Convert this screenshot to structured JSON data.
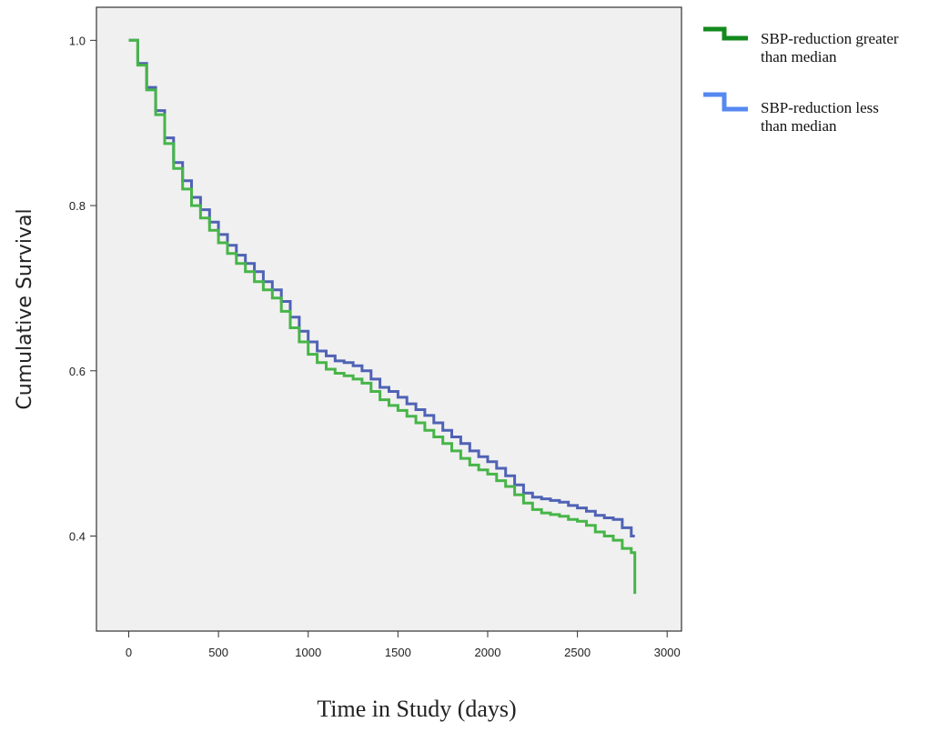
{
  "chart_data": {
    "type": "line",
    "subtype": "kaplan-meier-step",
    "xlabel": "Time in Study (days)",
    "ylabel": "Cumulative Survival",
    "xlim": [
      -180,
      3080
    ],
    "ylim": [
      0.285,
      1.04
    ],
    "xticks": [
      0,
      500,
      1000,
      1500,
      2000,
      2500,
      3000
    ],
    "yticks": [
      0.4,
      0.6,
      0.8,
      1.0
    ],
    "ytick_labels": [
      "0.4",
      "0.6",
      "0.8",
      "1.0"
    ],
    "grid": false,
    "legend_position": "outside-right",
    "series": [
      {
        "name": "SBP-reduction greater than median",
        "color": "#47b548",
        "legend_color": "#138a1e",
        "x": [
          0,
          50,
          100,
          150,
          200,
          250,
          300,
          350,
          400,
          450,
          500,
          550,
          600,
          650,
          700,
          750,
          800,
          850,
          900,
          950,
          1000,
          1050,
          1100,
          1150,
          1200,
          1250,
          1300,
          1350,
          1400,
          1450,
          1500,
          1550,
          1600,
          1650,
          1700,
          1750,
          1800,
          1850,
          1900,
          1950,
          2000,
          2050,
          2100,
          2150,
          2200,
          2250,
          2300,
          2350,
          2400,
          2450,
          2500,
          2550,
          2600,
          2650,
          2700,
          2750,
          2800,
          2820
        ],
        "y": [
          1.0,
          0.97,
          0.94,
          0.91,
          0.875,
          0.845,
          0.82,
          0.8,
          0.785,
          0.77,
          0.755,
          0.742,
          0.73,
          0.72,
          0.708,
          0.698,
          0.688,
          0.672,
          0.652,
          0.635,
          0.62,
          0.61,
          0.602,
          0.597,
          0.594,
          0.59,
          0.585,
          0.575,
          0.565,
          0.558,
          0.552,
          0.545,
          0.537,
          0.528,
          0.52,
          0.512,
          0.503,
          0.494,
          0.486,
          0.48,
          0.475,
          0.467,
          0.46,
          0.45,
          0.44,
          0.432,
          0.428,
          0.426,
          0.424,
          0.42,
          0.418,
          0.413,
          0.405,
          0.4,
          0.395,
          0.385,
          0.38,
          0.33
        ]
      },
      {
        "name": "SBP-reduction less than median",
        "color": "#4f62b5",
        "legend_color": "#5588f0",
        "x": [
          0,
          50,
          100,
          150,
          200,
          250,
          300,
          350,
          400,
          450,
          500,
          550,
          600,
          650,
          700,
          750,
          800,
          850,
          900,
          950,
          1000,
          1050,
          1100,
          1150,
          1200,
          1250,
          1300,
          1350,
          1400,
          1450,
          1500,
          1550,
          1600,
          1650,
          1700,
          1750,
          1800,
          1850,
          1900,
          1950,
          2000,
          2050,
          2100,
          2150,
          2200,
          2250,
          2300,
          2350,
          2400,
          2450,
          2500,
          2550,
          2600,
          2650,
          2700,
          2750,
          2800,
          2820
        ],
        "y": [
          1.0,
          0.972,
          0.943,
          0.915,
          0.882,
          0.852,
          0.83,
          0.81,
          0.795,
          0.78,
          0.765,
          0.752,
          0.74,
          0.73,
          0.72,
          0.708,
          0.698,
          0.684,
          0.665,
          0.648,
          0.635,
          0.624,
          0.618,
          0.612,
          0.61,
          0.606,
          0.6,
          0.59,
          0.58,
          0.575,
          0.568,
          0.56,
          0.553,
          0.546,
          0.537,
          0.528,
          0.52,
          0.512,
          0.503,
          0.496,
          0.49,
          0.482,
          0.473,
          0.462,
          0.452,
          0.447,
          0.445,
          0.443,
          0.441,
          0.437,
          0.434,
          0.43,
          0.425,
          0.422,
          0.42,
          0.41,
          0.4,
          0.4
        ]
      }
    ]
  }
}
